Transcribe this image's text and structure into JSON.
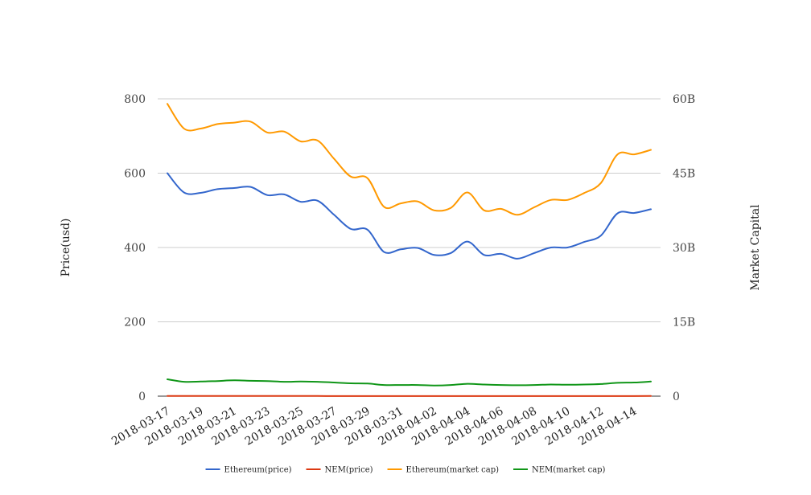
{
  "chart_data": {
    "type": "line",
    "title": "",
    "x": [
      "2018-03-17",
      "2018-03-18",
      "2018-03-19",
      "2018-03-20",
      "2018-03-21",
      "2018-03-22",
      "2018-03-23",
      "2018-03-24",
      "2018-03-25",
      "2018-03-26",
      "2018-03-27",
      "2018-03-28",
      "2018-03-29",
      "2018-03-30",
      "2018-03-31",
      "2018-04-01",
      "2018-04-02",
      "2018-04-03",
      "2018-04-04",
      "2018-04-05",
      "2018-04-06",
      "2018-04-07",
      "2018-04-08",
      "2018-04-09",
      "2018-04-10",
      "2018-04-11",
      "2018-04-12",
      "2018-04-13",
      "2018-04-14",
      "2018-04-15"
    ],
    "x_tick_labels": [
      "2018-03-17",
      "2018-03-19",
      "2018-03-21",
      "2018-03-23",
      "2018-03-25",
      "2018-03-27",
      "2018-03-29",
      "2018-03-31",
      "2018-04-02",
      "2018-04-04",
      "2018-04-06",
      "2018-04-08",
      "2018-04-10",
      "2018-04-12",
      "2018-04-14"
    ],
    "ylabel_left": "Price(usd)",
    "ylabel_right": "Market Capital",
    "ylim_left": [
      0,
      800
    ],
    "ylim_right": [
      0,
      60000000000
    ],
    "yticks_left": [
      "0",
      "200",
      "400",
      "600",
      "800"
    ],
    "yticks_right": [
      "0",
      "15B",
      "30B",
      "45B",
      "60B"
    ],
    "grid": true,
    "legend_position": "bottom",
    "series": [
      {
        "name": "Ethereum(price)",
        "axis": "left",
        "color": "#3366cc",
        "values": [
          600,
          548,
          547,
          557,
          560,
          563,
          541,
          543,
          523,
          526,
          488,
          450,
          448,
          388,
          395,
          399,
          380,
          385,
          416,
          380,
          383,
          370,
          385,
          400,
          400,
          415,
          432,
          492,
          493,
          503
        ]
      },
      {
        "name": "NEM(price)",
        "axis": "left",
        "color": "#dc3912",
        "values": [
          0.38,
          0.34,
          0.34,
          0.35,
          0.36,
          0.35,
          0.35,
          0.33,
          0.33,
          0.33,
          0.31,
          0.3,
          0.29,
          0.26,
          0.26,
          0.26,
          0.25,
          0.26,
          0.29,
          0.27,
          0.26,
          0.26,
          0.26,
          0.27,
          0.26,
          0.27,
          0.28,
          0.31,
          0.32,
          0.34
        ]
      },
      {
        "name": "Ethereum(market cap)",
        "axis": "right",
        "color": "#ff9900",
        "values": [
          59000000000,
          54000000000,
          54000000000,
          54900000000,
          55200000000,
          55400000000,
          53200000000,
          53400000000,
          51400000000,
          51600000000,
          47900000000,
          44300000000,
          44000000000,
          38200000000,
          38900000000,
          39300000000,
          37500000000,
          38000000000,
          41100000000,
          37500000000,
          37800000000,
          36600000000,
          38100000000,
          39600000000,
          39600000000,
          41000000000,
          43000000000,
          48800000000,
          48800000000,
          49700000000
        ]
      },
      {
        "name": "NEM(market cap)",
        "axis": "right",
        "color": "#109618",
        "values": [
          3400000000,
          2900000000,
          2950000000,
          3050000000,
          3200000000,
          3100000000,
          3050000000,
          2900000000,
          2950000000,
          2900000000,
          2750000000,
          2600000000,
          2550000000,
          2250000000,
          2250000000,
          2250000000,
          2150000000,
          2250000000,
          2500000000,
          2350000000,
          2250000000,
          2200000000,
          2250000000,
          2350000000,
          2300000000,
          2350000000,
          2450000000,
          2700000000,
          2750000000,
          2950000000
        ]
      }
    ]
  }
}
